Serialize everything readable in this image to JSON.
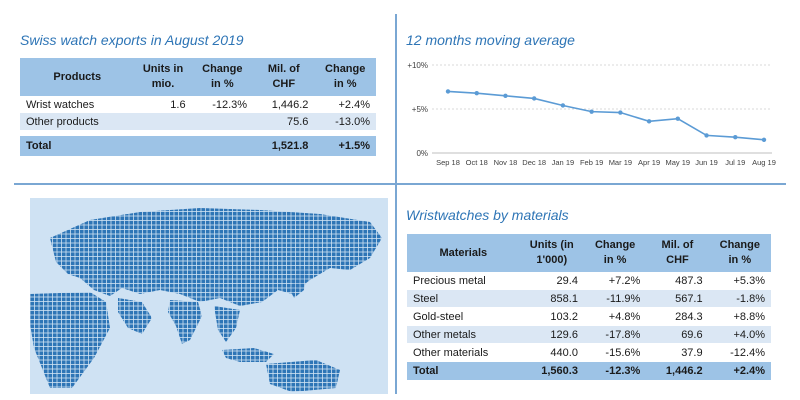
{
  "exports": {
    "title": "Swiss watch exports in August 2019",
    "headers": [
      "Products",
      "Units in mio.",
      "Change in %",
      "Mil. of CHF",
      "Change in %"
    ],
    "rows": [
      {
        "product": "Wrist watches",
        "units": "1.6",
        "change_units": "-12.3%",
        "chf": "1,446.2",
        "change_chf": "+2.4%"
      },
      {
        "product": "Other products",
        "units": "",
        "change_units": "",
        "chf": "75.6",
        "change_chf": "-13.0%"
      }
    ],
    "total": {
      "product": "Total",
      "units": "",
      "change_units": "",
      "chf": "1,521.8",
      "change_chf": "+1.5%"
    }
  },
  "moving_average": {
    "title": "12 months moving average"
  },
  "materials": {
    "title": "Wristwatches by materials",
    "headers": [
      "Materials",
      "Units (in 1'000)",
      "Change in %",
      "Mil. of CHF",
      "Change in %"
    ],
    "rows": [
      {
        "material": "Precious metal",
        "units": "29.4",
        "change_units": "+7.2%",
        "chf": "487.3",
        "change_chf": "+5.3%"
      },
      {
        "material": "Steel",
        "units": "858.1",
        "change_units": "-11.9%",
        "chf": "567.1",
        "change_chf": "-1.8%"
      },
      {
        "material": "Gold-steel",
        "units": "103.2",
        "change_units": "+4.8%",
        "chf": "284.3",
        "change_chf": "+8.8%"
      },
      {
        "material": "Other metals",
        "units": "129.6",
        "change_units": "-17.8%",
        "chf": "69.6",
        "change_chf": "+4.0%"
      },
      {
        "material": "Other materials",
        "units": "440.0",
        "change_units": "-15.6%",
        "chf": "37.9",
        "change_chf": "-12.4%"
      }
    ],
    "total": {
      "material": "Total",
      "units": "1,560.3",
      "change_units": "-12.3%",
      "chf": "1,446.2",
      "change_chf": "+2.4%"
    }
  },
  "colors": {
    "title_blue": "#2e75b6",
    "header_fill": "#9dc3e6",
    "row_shade": "#dbe7f4",
    "line": "#5b9bd5",
    "map_land": "#2e75b6"
  },
  "chart_data": {
    "type": "line",
    "title": "12 months moving average",
    "x": [
      "Sep 18",
      "Oct 18",
      "Nov 18",
      "Dec 18",
      "Jan 19",
      "Feb 19",
      "Mar 19",
      "Apr 19",
      "May 19",
      "Jun 19",
      "Jul 19",
      "Aug 19"
    ],
    "series": [
      {
        "values": [
          7.0,
          6.8,
          6.5,
          6.2,
          5.4,
          4.7,
          4.6,
          3.6,
          3.9,
          2.0,
          1.8,
          1.5
        ]
      }
    ],
    "yticks": [
      "+10%",
      "+5%",
      "0%"
    ],
    "ylim": [
      0,
      10
    ],
    "grid": "horizontal",
    "legend": "none"
  }
}
